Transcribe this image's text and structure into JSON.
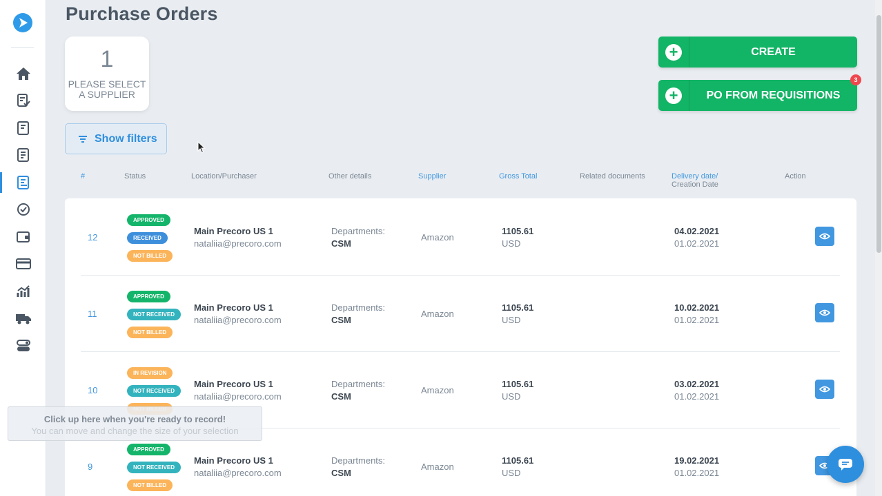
{
  "page": {
    "title": "Purchase Orders"
  },
  "sidebar": {
    "items": [
      {
        "icon": "home-icon"
      },
      {
        "icon": "requisition-approval-icon"
      },
      {
        "icon": "document-icon"
      },
      {
        "icon": "document-list-icon"
      },
      {
        "icon": "purchase-order-icon",
        "active": true
      },
      {
        "icon": "check-circle-icon"
      },
      {
        "icon": "wallet-icon"
      },
      {
        "icon": "credit-card-icon"
      },
      {
        "icon": "analytics-icon"
      },
      {
        "icon": "truck-icon"
      },
      {
        "icon": "settings-toggles-icon"
      }
    ]
  },
  "supplier_card": {
    "count": "1",
    "label": "PLEASE SELECT A SUPPLIER"
  },
  "filters": {
    "label": "Show filters"
  },
  "actions": {
    "create_label": "CREATE",
    "po_from_req_label": "PO FROM REQUISITIONS",
    "po_from_req_badge": "3"
  },
  "table": {
    "headers": {
      "num": "#",
      "status": "Status",
      "location": "Location/Purchaser",
      "other": "Other details",
      "supplier": "Supplier",
      "gross": "Gross Total",
      "related": "Related documents",
      "delivery": "Delivery date/",
      "creation": "Creation Date",
      "action": "Action"
    },
    "rows": [
      {
        "num": "12",
        "statuses": [
          {
            "text": "APPROVED",
            "color": "green"
          },
          {
            "text": "RECEIVED",
            "color": "blue"
          },
          {
            "text": "NOT BILLED",
            "color": "orange"
          }
        ],
        "location": "Main Precoro US 1",
        "purchaser": "nataliia@precoro.com",
        "details_label": "Departments:",
        "details_value": "CSM",
        "supplier": "Amazon",
        "gross": "1105.61",
        "currency": "USD",
        "delivery": "04.02.2021",
        "creation": "01.02.2021"
      },
      {
        "num": "11",
        "statuses": [
          {
            "text": "APPROVED",
            "color": "green"
          },
          {
            "text": "NOT RECEIVED",
            "color": "teal"
          },
          {
            "text": "NOT BILLED",
            "color": "orange"
          }
        ],
        "location": "Main Precoro US 1",
        "purchaser": "nataliia@precoro.com",
        "details_label": "Departments:",
        "details_value": "CSM",
        "supplier": "Amazon",
        "gross": "1105.61",
        "currency": "USD",
        "delivery": "10.02.2021",
        "creation": "01.02.2021"
      },
      {
        "num": "10",
        "statuses": [
          {
            "text": "IN REVISION",
            "color": "orange"
          },
          {
            "text": "NOT RECEIVED",
            "color": "teal"
          },
          {
            "text": "NOT BILLED",
            "color": "orange"
          }
        ],
        "location": "Main Precoro US 1",
        "purchaser": "nataliia@precoro.com",
        "details_label": "Departments:",
        "details_value": "CSM",
        "supplier": "Amazon",
        "gross": "1105.61",
        "currency": "USD",
        "delivery": "03.02.2021",
        "creation": "01.02.2021"
      },
      {
        "num": "9",
        "statuses": [
          {
            "text": "APPROVED",
            "color": "green"
          },
          {
            "text": "NOT RECEIVED",
            "color": "teal"
          },
          {
            "text": "NOT BILLED",
            "color": "orange"
          }
        ],
        "location": "Main Precoro US 1",
        "purchaser": "nataliia@precoro.com",
        "details_label": "Departments:",
        "details_value": "CSM",
        "supplier": "Amazon",
        "gross": "1105.61",
        "currency": "USD",
        "delivery": "19.02.2021",
        "creation": "01.02.2021"
      }
    ]
  },
  "overlay": {
    "line1": "Click up here when you're ready to record!",
    "line2": "You can move and change the size of your selection"
  },
  "colors": {
    "green": "#14b56a",
    "blue": "#3d8fdc",
    "orange": "#fbb45a",
    "teal": "#33b3bd",
    "accent": "#2e8fde"
  }
}
